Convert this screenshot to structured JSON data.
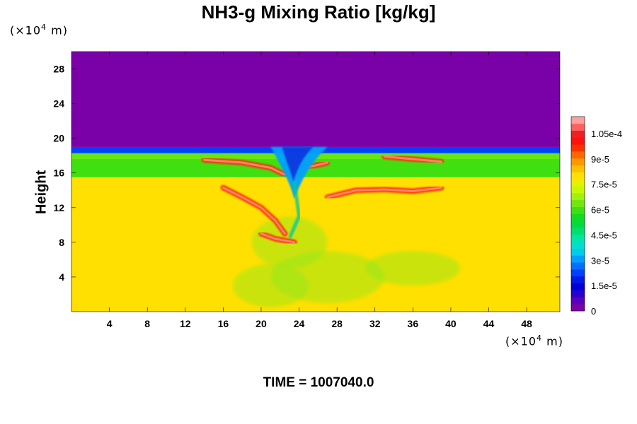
{
  "chart_data": {
    "type": "heatmap",
    "title": "NH3-g Mixing Ratio [kg/kg]",
    "ylabel": "Height",
    "x_unit": "(×10",
    "x_unit_exp": "4",
    "x_unit_tail": " m)",
    "y_unit": "(×10",
    "y_unit_exp": "4",
    "y_unit_tail": " m)",
    "xlim": [
      0,
      51.5
    ],
    "ylim": [
      0,
      30
    ],
    "x_ticks": [
      4,
      8,
      12,
      16,
      20,
      24,
      28,
      32,
      36,
      40,
      44,
      48
    ],
    "y_ticks": [
      4,
      8,
      12,
      16,
      20,
      24,
      28
    ],
    "colorbar": {
      "range": [
        0,
        0.000115
      ],
      "tick_labels": [
        "0",
        "1.5e-5",
        "3e-5",
        "4.5e-5",
        "6e-5",
        "7.5e-5",
        "9e-5",
        "1.05e-4"
      ],
      "tick_values": [
        0,
        1.5e-05,
        3e-05,
        4.5e-05,
        6e-05,
        7.5e-05,
        9e-05,
        0.000105
      ],
      "colors": [
        "#7a00a8",
        "#5a00bd",
        "#2800cf",
        "#0000d8",
        "#0018e8",
        "#0040ff",
        "#0070ff",
        "#00a0ff",
        "#00ccee",
        "#00e0cc",
        "#00e8a0",
        "#00e070",
        "#00dc40",
        "#10dc20",
        "#40e010",
        "#70e810",
        "#a0f010",
        "#c8f800",
        "#e8f000",
        "#ffe000",
        "#ffc000",
        "#ff9800",
        "#ff6800",
        "#ff3000",
        "#ff1010",
        "#ee2020",
        "#ff6060",
        "#ffa0a0"
      ]
    },
    "regions": [
      {
        "name": "upper layer",
        "value": 0,
        "y_range": [
          19,
          30
        ]
      },
      {
        "name": "boundary band",
        "value": 2e-05,
        "y_range": [
          18.3,
          19
        ]
      },
      {
        "name": "green band",
        "value": 6e-05,
        "y_range": [
          15.5,
          18.3
        ]
      },
      {
        "name": "lower layer",
        "value": 8e-05,
        "y_range": [
          0,
          15.5
        ]
      },
      {
        "name": "red arms",
        "value": 0.0001
      },
      {
        "name": "central plume",
        "value": 3e-05,
        "x_range": [
          21,
          27
        ]
      }
    ]
  },
  "footer_text": "TIME = 1007040.0"
}
